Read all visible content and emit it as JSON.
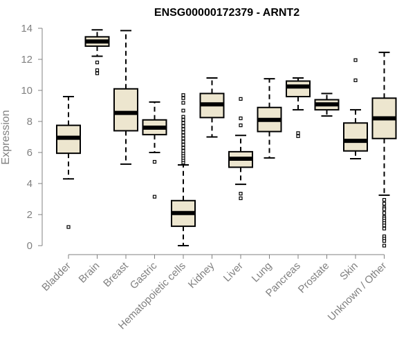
{
  "chart_data": {
    "type": "boxplot",
    "title": "ENSG00000172379 - ARNT2",
    "xlabel": "",
    "ylabel": "Expression",
    "ylim": [
      0,
      14
    ],
    "yticks": [
      0,
      2,
      4,
      6,
      8,
      10,
      12,
      14
    ],
    "grid": false,
    "colors": {
      "box_fill": "#ede6cf",
      "outline": "#000000",
      "axis": "#808080"
    },
    "categories": [
      "Bladder",
      "Brain",
      "Breast",
      "Gastric",
      "Hematopoietic cells",
      "Kidney",
      "Liver",
      "Lung",
      "Pancreas",
      "Prostate",
      "Skin",
      "Unknown / Other"
    ],
    "boxes": [
      {
        "category": "Bladder",
        "q1": 5.95,
        "median": 6.95,
        "q3": 7.75,
        "whisker_low": 4.3,
        "whisker_high": 9.6,
        "outliers": [
          1.2
        ]
      },
      {
        "category": "Brain",
        "q1": 12.85,
        "median": 13.15,
        "q3": 13.45,
        "whisker_low": 12.2,
        "whisker_high": 13.9,
        "outliers": [
          11.8,
          11.3,
          11.1
        ]
      },
      {
        "category": "Breast",
        "q1": 7.4,
        "median": 8.55,
        "q3": 10.1,
        "whisker_low": 5.25,
        "whisker_high": 13.85,
        "outliers": []
      },
      {
        "category": "Gastric",
        "q1": 7.15,
        "median": 7.6,
        "q3": 8.1,
        "whisker_low": 6.0,
        "whisker_high": 9.25,
        "outliers": [
          5.4,
          3.15
        ]
      },
      {
        "category": "Hematopoietic cells",
        "q1": 1.25,
        "median": 2.1,
        "q3": 2.9,
        "whisker_low": 0.0,
        "whisker_high": 5.2,
        "outliers": [
          5.35,
          5.5,
          5.65,
          5.8,
          5.95,
          6.1,
          6.3,
          6.5,
          6.7,
          6.9,
          7.1,
          7.3,
          7.5,
          7.7,
          7.9,
          8.1,
          8.3,
          8.7,
          9.2,
          9.5,
          9.7
        ]
      },
      {
        "category": "Kidney",
        "q1": 8.25,
        "median": 9.1,
        "q3": 9.8,
        "whisker_low": 7.0,
        "whisker_high": 10.8,
        "outliers": []
      },
      {
        "category": "Liver",
        "q1": 5.05,
        "median": 5.6,
        "q3": 6.05,
        "whisker_low": 3.95,
        "whisker_high": 7.1,
        "outliers": [
          8.2,
          7.75,
          9.45,
          3.35,
          3.05
        ]
      },
      {
        "category": "Lung",
        "q1": 7.35,
        "median": 8.1,
        "q3": 8.9,
        "whisker_low": 5.65,
        "whisker_high": 10.75,
        "outliers": []
      },
      {
        "category": "Pancreas",
        "q1": 9.6,
        "median": 10.25,
        "q3": 10.6,
        "whisker_low": 8.75,
        "whisker_high": 10.8,
        "outliers": [
          7.25,
          7.05
        ]
      },
      {
        "category": "Prostate",
        "q1": 8.75,
        "median": 9.1,
        "q3": 9.4,
        "whisker_low": 8.35,
        "whisker_high": 9.8,
        "outliers": []
      },
      {
        "category": "Skin",
        "q1": 6.1,
        "median": 6.75,
        "q3": 7.9,
        "whisker_low": 5.6,
        "whisker_high": 8.75,
        "outliers": [
          11.95,
          10.65
        ]
      },
      {
        "category": "Unknown / Other",
        "q1": 6.9,
        "median": 8.2,
        "q3": 9.5,
        "whisker_low": 3.25,
        "whisker_high": 12.45,
        "outliers": [
          2.95,
          2.7,
          2.45,
          2.35,
          2.1,
          1.85,
          1.75,
          1.6,
          1.45,
          1.3,
          1.1,
          0.6,
          0.45,
          0.3,
          0.0
        ]
      }
    ]
  }
}
